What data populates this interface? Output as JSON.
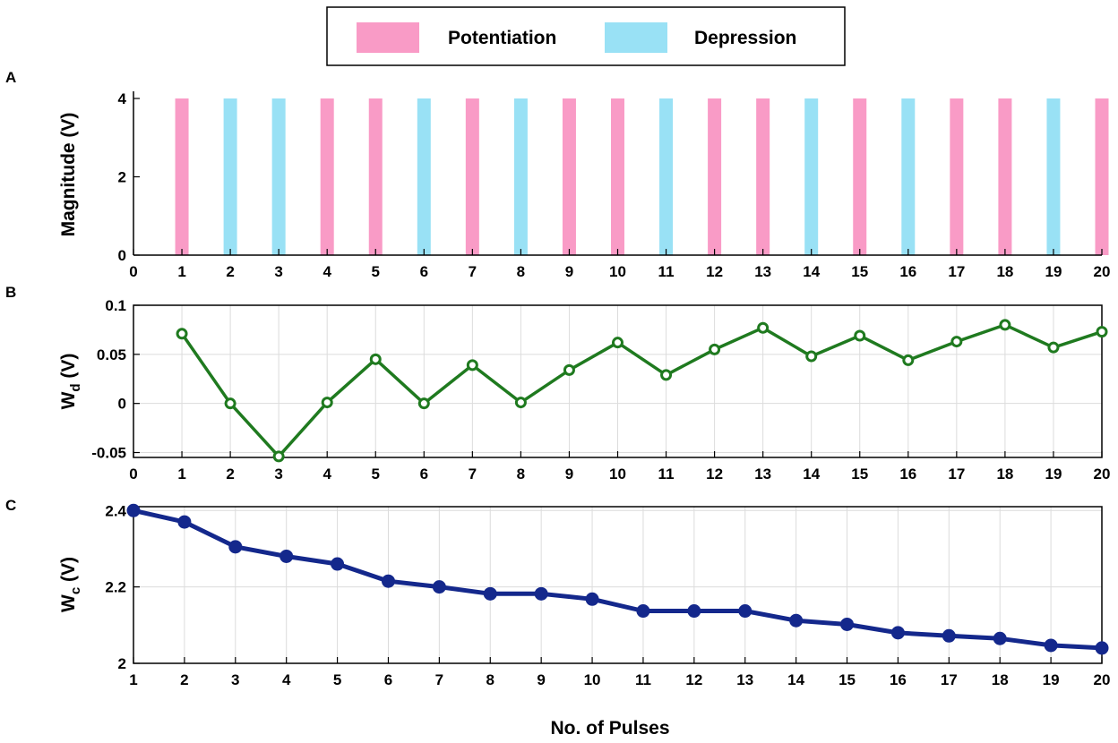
{
  "legend": {
    "items": [
      {
        "label": "Potentiation",
        "color": "#f99bc6"
      },
      {
        "label": "Depression",
        "color": "#99e1f5"
      }
    ]
  },
  "x_axis_label": "No. of Pulses",
  "chart_data": [
    {
      "panel": "A",
      "type": "bar",
      "ylabel": "Magnitude (V)",
      "ylim": [
        0,
        4
      ],
      "xlim": [
        0,
        20
      ],
      "yticks": [
        0,
        2,
        4
      ],
      "xticks": [
        0,
        1,
        2,
        3,
        4,
        5,
        6,
        7,
        8,
        9,
        10,
        11,
        12,
        13,
        14,
        15,
        16,
        17,
        18,
        19,
        20
      ],
      "grid": false,
      "categories": [
        1,
        2,
        3,
        4,
        5,
        6,
        7,
        8,
        9,
        10,
        11,
        12,
        13,
        14,
        15,
        16,
        17,
        18,
        19,
        20
      ],
      "values": [
        4,
        4,
        4,
        4,
        4,
        4,
        4,
        4,
        4,
        4,
        4,
        4,
        4,
        4,
        4,
        4,
        4,
        4,
        4,
        4
      ],
      "pulse_types": [
        "Potentiation",
        "Depression",
        "Depression",
        "Potentiation",
        "Potentiation",
        "Depression",
        "Potentiation",
        "Depression",
        "Potentiation",
        "Potentiation",
        "Depression",
        "Potentiation",
        "Potentiation",
        "Depression",
        "Potentiation",
        "Depression",
        "Potentiation",
        "Potentiation",
        "Depression",
        "Potentiation"
      ]
    },
    {
      "panel": "B",
      "type": "line",
      "ylabel_main": "W",
      "ylabel_sub": "d",
      "ylabel_unit": " (V)",
      "color": "#1f7a1f",
      "ylim": [
        -0.055,
        0.1
      ],
      "xlim": [
        0,
        20
      ],
      "yticks": [
        -0.05,
        0,
        0.05,
        0.1
      ],
      "ytick_labels": [
        "-0.05",
        "0",
        "0.05",
        "0.1"
      ],
      "xticks": [
        0,
        1,
        2,
        3,
        4,
        5,
        6,
        7,
        8,
        9,
        10,
        11,
        12,
        13,
        14,
        15,
        16,
        17,
        18,
        19,
        20
      ],
      "grid": true,
      "x": [
        1,
        2,
        3,
        4,
        5,
        6,
        7,
        8,
        9,
        10,
        11,
        12,
        13,
        14,
        15,
        16,
        17,
        18,
        19,
        20
      ],
      "y": [
        0.071,
        0.0,
        -0.054,
        0.001,
        0.045,
        0.0,
        0.039,
        0.001,
        0.034,
        0.062,
        0.029,
        0.055,
        0.077,
        0.048,
        0.069,
        0.044,
        0.063,
        0.08,
        0.057,
        0.073
      ]
    },
    {
      "panel": "C",
      "type": "line",
      "ylabel_main": "W",
      "ylabel_sub": "c",
      "ylabel_unit": " (V)",
      "color": "#14288c",
      "ylim": [
        2.0,
        2.41
      ],
      "xlim": [
        1,
        20
      ],
      "yticks": [
        2,
        2.2,
        2.4
      ],
      "ytick_labels": [
        "2",
        "2.2",
        "2.4"
      ],
      "xticks": [
        1,
        2,
        3,
        4,
        5,
        6,
        7,
        8,
        9,
        10,
        11,
        12,
        13,
        14,
        15,
        16,
        17,
        18,
        19,
        20
      ],
      "grid": true,
      "x": [
        1,
        2,
        3,
        4,
        5,
        6,
        7,
        8,
        9,
        10,
        11,
        12,
        13,
        14,
        15,
        16,
        17,
        18,
        19,
        20
      ],
      "y": [
        2.4,
        2.37,
        2.305,
        2.28,
        2.26,
        2.215,
        2.2,
        2.182,
        2.182,
        2.168,
        2.137,
        2.137,
        2.137,
        2.112,
        2.102,
        2.08,
        2.072,
        2.065,
        2.047,
        2.04
      ]
    }
  ]
}
